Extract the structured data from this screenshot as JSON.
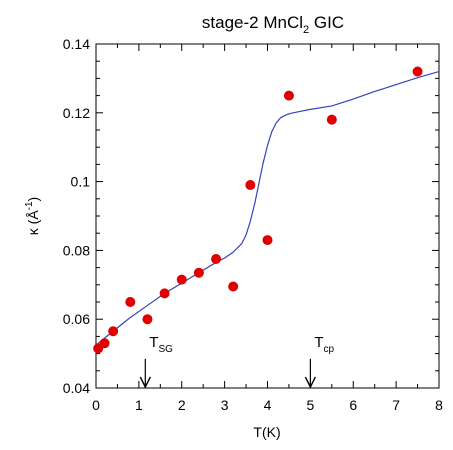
{
  "chart_data": {
    "type": "scatter",
    "title": {
      "main": "stage-2 MnCl",
      "sub": "2",
      "tail": " GIC"
    },
    "xlabel": "T(K)",
    "ylabel": {
      "main": "κ (Å",
      "sup": "-1",
      "tail": ")"
    },
    "xlim": [
      0,
      8
    ],
    "ylim": [
      0.04,
      0.14
    ],
    "xticks": [
      0,
      1,
      2,
      3,
      4,
      5,
      6,
      7,
      8
    ],
    "xtick_labels": [
      "0",
      "1",
      "2",
      "3",
      "4",
      "5",
      "6",
      "7",
      "8"
    ],
    "yticks": [
      0.04,
      0.06,
      0.08,
      0.1,
      0.12,
      0.14
    ],
    "ytick_labels": [
      "0.04",
      "0.06",
      "0.08",
      "0.1",
      "0.12",
      "0.14"
    ],
    "grid": false,
    "points": {
      "color": "#e00000",
      "x": [
        0.05,
        0.2,
        0.4,
        0.8,
        1.2,
        1.6,
        2.0,
        2.4,
        2.8,
        3.2,
        3.6,
        4.0,
        4.5,
        5.5,
        7.5
      ],
      "y": [
        0.0515,
        0.053,
        0.0565,
        0.065,
        0.06,
        0.0675,
        0.0715,
        0.0735,
        0.0775,
        0.0695,
        0.099,
        0.083,
        0.125,
        0.118,
        0.132
      ]
    },
    "fit_curve": {
      "color": "#3344bb",
      "x": [
        0.0,
        0.2,
        0.4,
        0.8,
        1.2,
        1.6,
        2.0,
        2.4,
        2.8,
        3.0,
        3.2,
        3.4,
        3.5,
        3.6,
        3.7,
        3.8,
        3.9,
        4.0,
        4.1,
        4.2,
        4.3,
        4.4,
        4.5,
        4.6,
        4.8,
        5.0,
        5.5,
        6.0,
        6.5,
        7.0,
        7.5,
        8.0
      ],
      "y": [
        0.0525,
        0.0545,
        0.0565,
        0.0605,
        0.064,
        0.0675,
        0.0705,
        0.0735,
        0.0765,
        0.0778,
        0.0795,
        0.082,
        0.0845,
        0.0885,
        0.0935,
        0.0995,
        0.1055,
        0.1105,
        0.1145,
        0.117,
        0.1185,
        0.1192,
        0.1197,
        0.12,
        0.1205,
        0.121,
        0.122,
        0.124,
        0.1262,
        0.1282,
        0.1302,
        0.132
      ]
    },
    "annotations": [
      {
        "name": "tsg",
        "main": "T",
        "sub": "SG",
        "x": 1.15,
        "arrow_from": 0.045,
        "arrow_to": 0.04
      },
      {
        "name": "tcp",
        "main": "T",
        "sub": "cp",
        "x": 5.0,
        "arrow_from": 0.045,
        "arrow_to": 0.04
      }
    ]
  }
}
